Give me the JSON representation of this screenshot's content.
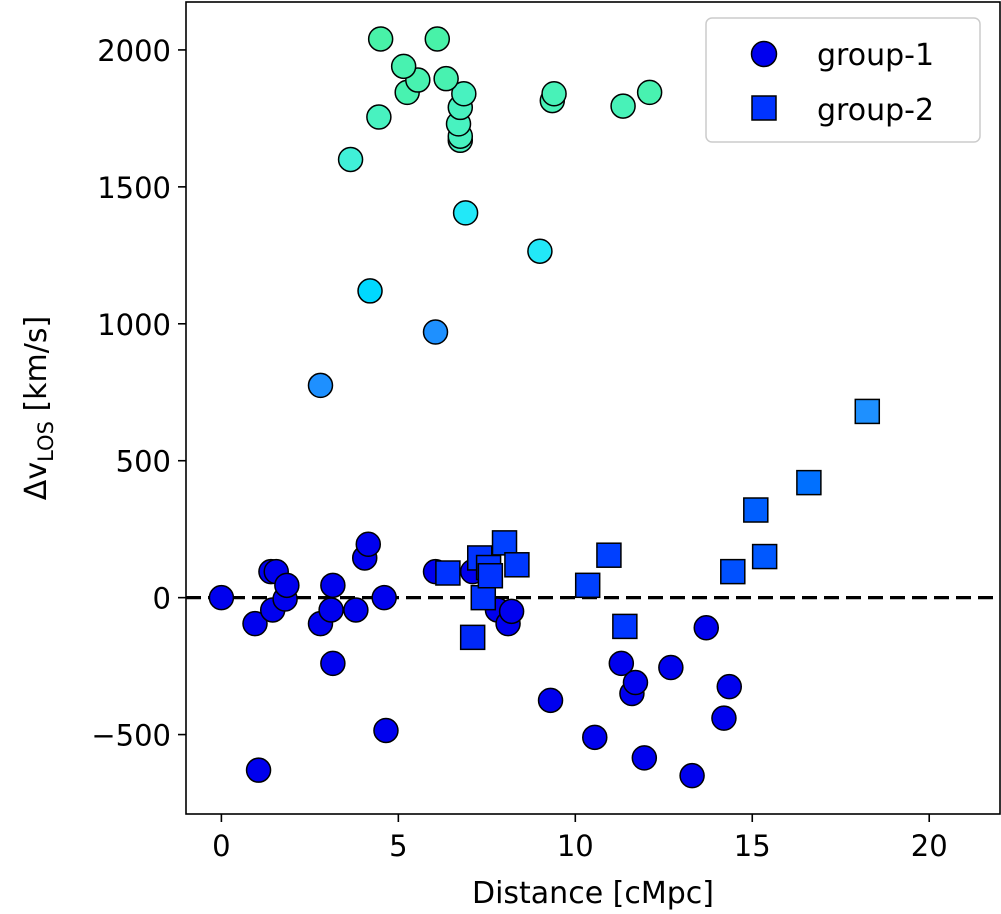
{
  "chart_data": {
    "type": "scatter",
    "title": "",
    "xlabel": "Distance [cMpc]",
    "ylabel": {
      "main": "Δv",
      "subscript": "LOS",
      "unit": " [km/s]"
    },
    "xlim": [
      -1,
      22
    ],
    "ylim": [
      -790,
      2175
    ],
    "xticks": [
      0,
      5,
      10,
      15,
      20
    ],
    "yticks": [
      -500,
      0,
      500,
      1000,
      1500,
      2000
    ],
    "xtick_labels": [
      "0",
      "5",
      "10",
      "15",
      "20"
    ],
    "ytick_labels": [
      "−500",
      "0",
      "500",
      "1000",
      "1500",
      "2000"
    ],
    "reference_line": {
      "y": 0,
      "style": "dashed",
      "color": "#000000"
    },
    "legend": {
      "position": "top-right",
      "entries": [
        {
          "label": "group-1",
          "marker": "circle",
          "color": "#0000ee"
        },
        {
          "label": "group-2",
          "marker": "square",
          "color": "#0033ff"
        }
      ]
    },
    "series": [
      {
        "name": "group-1",
        "marker": "circle",
        "points": [
          {
            "x": 0.0,
            "y": 0,
            "color": "#0000ee"
          },
          {
            "x": 0.95,
            "y": -95,
            "color": "#0000ee"
          },
          {
            "x": 1.05,
            "y": -630,
            "color": "#0000ee"
          },
          {
            "x": 1.4,
            "y": 95,
            "color": "#0000ee"
          },
          {
            "x": 1.45,
            "y": -45,
            "color": "#0000ee"
          },
          {
            "x": 1.55,
            "y": 95,
            "color": "#0000ee"
          },
          {
            "x": 1.8,
            "y": -5,
            "color": "#0000ee"
          },
          {
            "x": 1.85,
            "y": 45,
            "color": "#0000ee"
          },
          {
            "x": 2.8,
            "y": -95,
            "color": "#0000ee"
          },
          {
            "x": 3.1,
            "y": -45,
            "color": "#0000ee"
          },
          {
            "x": 3.15,
            "y": 45,
            "color": "#0000ee"
          },
          {
            "x": 3.15,
            "y": -240,
            "color": "#0000ee"
          },
          {
            "x": 3.8,
            "y": -45,
            "color": "#0000ee"
          },
          {
            "x": 4.05,
            "y": 145,
            "color": "#0000ee"
          },
          {
            "x": 4.15,
            "y": 195,
            "color": "#0000ee"
          },
          {
            "x": 4.6,
            "y": 0,
            "color": "#0000ee"
          },
          {
            "x": 4.65,
            "y": -485,
            "color": "#0000ee"
          },
          {
            "x": 6.05,
            "y": 95,
            "color": "#0000ee"
          },
          {
            "x": 7.1,
            "y": 95,
            "color": "#0000ee"
          },
          {
            "x": 7.8,
            "y": -45,
            "color": "#0000ee"
          },
          {
            "x": 8.1,
            "y": -95,
            "color": "#0000ee"
          },
          {
            "x": 8.2,
            "y": -50,
            "color": "#0000ee"
          },
          {
            "x": 9.3,
            "y": -375,
            "color": "#0000ee"
          },
          {
            "x": 10.55,
            "y": -510,
            "color": "#0000ee"
          },
          {
            "x": 11.3,
            "y": -240,
            "color": "#0000ee"
          },
          {
            "x": 11.6,
            "y": -350,
            "color": "#0000ee"
          },
          {
            "x": 11.7,
            "y": -310,
            "color": "#0000ee"
          },
          {
            "x": 11.95,
            "y": -585,
            "color": "#0000ee"
          },
          {
            "x": 12.7,
            "y": -255,
            "color": "#0000ee"
          },
          {
            "x": 13.3,
            "y": -650,
            "color": "#0000ee"
          },
          {
            "x": 13.7,
            "y": -110,
            "color": "#0000ee"
          },
          {
            "x": 14.2,
            "y": -440,
            "color": "#0000ee"
          },
          {
            "x": 14.35,
            "y": -325,
            "color": "#0000ee"
          },
          {
            "x": 2.8,
            "y": 775,
            "color": "#1e90ff"
          },
          {
            "x": 6.05,
            "y": 970,
            "color": "#1e90ff"
          },
          {
            "x": 4.2,
            "y": 1120,
            "color": "#00d8ff"
          },
          {
            "x": 9.0,
            "y": 1265,
            "color": "#22e8f8"
          },
          {
            "x": 6.9,
            "y": 1405,
            "color": "#22e8f8"
          },
          {
            "x": 3.65,
            "y": 1600,
            "color": "#40f0d8"
          },
          {
            "x": 4.45,
            "y": 1755,
            "color": "#48f2c0"
          },
          {
            "x": 6.75,
            "y": 1670,
            "color": "#48f2c0"
          },
          {
            "x": 6.75,
            "y": 1685,
            "color": "#48f2c0"
          },
          {
            "x": 6.7,
            "y": 1730,
            "color": "#48f2c0"
          },
          {
            "x": 6.75,
            "y": 1790,
            "color": "#48f2c0"
          },
          {
            "x": 6.85,
            "y": 1840,
            "color": "#48f2c0"
          },
          {
            "x": 5.25,
            "y": 1845,
            "color": "#48f2b0"
          },
          {
            "x": 5.55,
            "y": 1890,
            "color": "#48f2b0"
          },
          {
            "x": 6.35,
            "y": 1895,
            "color": "#48f2b0"
          },
          {
            "x": 5.15,
            "y": 1940,
            "color": "#48f2b0"
          },
          {
            "x": 4.5,
            "y": 2040,
            "color": "#48f2a8"
          },
          {
            "x": 6.1,
            "y": 2040,
            "color": "#48f2a8"
          },
          {
            "x": 9.35,
            "y": 1815,
            "color": "#48f2b8"
          },
          {
            "x": 9.4,
            "y": 1840,
            "color": "#48f2b8"
          },
          {
            "x": 11.35,
            "y": 1795,
            "color": "#48f2b8"
          },
          {
            "x": 12.1,
            "y": 1845,
            "color": "#48f2b0"
          }
        ]
      },
      {
        "name": "group-2",
        "marker": "square",
        "points": [
          {
            "x": 6.4,
            "y": 90,
            "color": "#0033ff"
          },
          {
            "x": 7.1,
            "y": -145,
            "color": "#0028f8"
          },
          {
            "x": 7.3,
            "y": 145,
            "color": "#0033ff"
          },
          {
            "x": 7.4,
            "y": 0,
            "color": "#0033ff"
          },
          {
            "x": 7.55,
            "y": 110,
            "color": "#0033ff"
          },
          {
            "x": 7.6,
            "y": 80,
            "color": "#0033ff"
          },
          {
            "x": 8.0,
            "y": 200,
            "color": "#0040ff"
          },
          {
            "x": 8.35,
            "y": 120,
            "color": "#0038ff"
          },
          {
            "x": 10.35,
            "y": 45,
            "color": "#0040ff"
          },
          {
            "x": 10.95,
            "y": 155,
            "color": "#0040ff"
          },
          {
            "x": 11.4,
            "y": -105,
            "color": "#0036ff"
          },
          {
            "x": 14.45,
            "y": 95,
            "color": "#0050ff"
          },
          {
            "x": 15.1,
            "y": 320,
            "color": "#005eff"
          },
          {
            "x": 15.35,
            "y": 150,
            "color": "#0058ff"
          },
          {
            "x": 16.6,
            "y": 420,
            "color": "#0070ff"
          },
          {
            "x": 18.25,
            "y": 680,
            "color": "#1e90ff"
          }
        ]
      }
    ]
  }
}
